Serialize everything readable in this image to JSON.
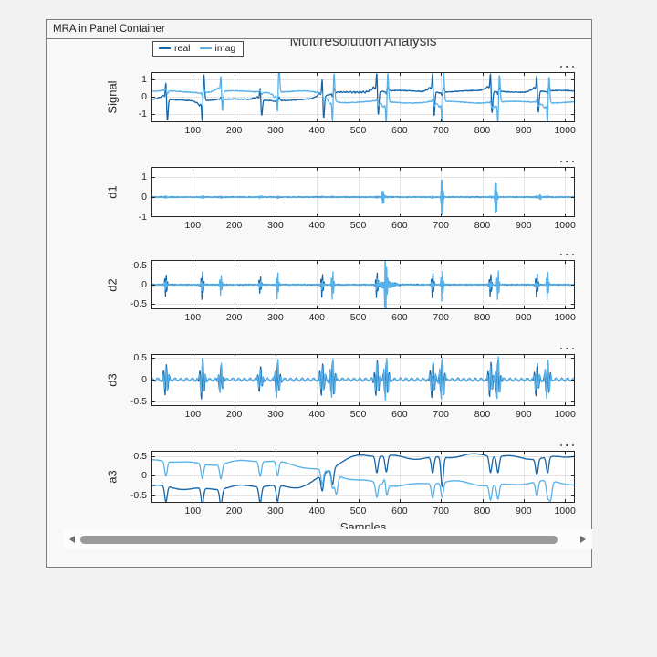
{
  "window": {
    "tab_label": "MRA in Panel Container"
  },
  "figure": {
    "title": "Multiresolution Analysis",
    "xlabel": "Samples",
    "legend": {
      "items": [
        {
          "label": "real",
          "color": "#1565A8"
        },
        {
          "label": "imag",
          "color": "#58B1E8"
        }
      ]
    },
    "axes_menu_icon": "ellipsis-dots"
  },
  "colors": {
    "real_line": "#1565A8",
    "imag_line": "#58B1E8",
    "grid": "#dcdcdc",
    "axis_border": "#262626",
    "panel_border": "#7f7f7f",
    "background": "#f2f2f2",
    "panel_background": "#f8f8f8",
    "scroll_thumb": "#9a9a9a",
    "scroll_arrow": "#6f6f6f"
  },
  "scrollbar": {
    "orientation": "horizontal"
  },
  "chart_data": {
    "type": "line",
    "title": "Multiresolution Analysis",
    "xlabel": "Samples",
    "x_range": [
      0,
      1024
    ],
    "grid": true,
    "legend_position": "top-left",
    "series_names": [
      "real",
      "imag"
    ],
    "xtick_vals": [
      100,
      200,
      300,
      400,
      500,
      600,
      700,
      800,
      900,
      1000
    ],
    "xtick_labels": [
      "100",
      "200",
      "300",
      "400",
      "500",
      "600",
      "700",
      "800",
      "900",
      "1000"
    ],
    "beats": [
      {
        "p": 35,
        "owner": "real",
        "amp": 1.15
      },
      {
        "p": 123,
        "owner": "real",
        "amp": -1.45
      },
      {
        "p": 168,
        "owner": "imag",
        "amp": 1.05
      },
      {
        "p": 263,
        "owner": "real",
        "amp": 0.85
      },
      {
        "p": 305,
        "owner": "imag",
        "amp": -1.35
      },
      {
        "p": 413,
        "owner": "real",
        "amp": 1.2
      },
      {
        "p": 438,
        "owner": "imag",
        "amp": -1.5
      },
      {
        "p": 545,
        "owner": "real",
        "amp": 1.25
      },
      {
        "p": 568,
        "owner": "imag",
        "amp": -1.55
      },
      {
        "p": 680,
        "owner": "real",
        "amp": 1.3
      },
      {
        "p": 703,
        "owner": "imag",
        "amp": -1.6
      },
      {
        "p": 820,
        "owner": "real",
        "amp": 1.2
      },
      {
        "p": 838,
        "owner": "imag",
        "amp": -1.5
      },
      {
        "p": 932,
        "owner": "real",
        "amp": 1.15
      },
      {
        "p": 958,
        "owner": "imag",
        "amp": -1.45
      }
    ],
    "d1_bursts": [
      {
        "p": 125,
        "amp": 0.12
      },
      {
        "p": 265,
        "amp": 0.1
      },
      {
        "p": 560,
        "amp": 0.55
      },
      {
        "p": 703,
        "amp": 1.55
      },
      {
        "p": 833,
        "amp": 1.4
      },
      {
        "p": 940,
        "amp": 0.2
      }
    ],
    "subplots": [
      {
        "kind": "signal",
        "ylabel": "Signal",
        "ytick_labels": [
          "1",
          "0",
          "-1"
        ],
        "ytick_vals": [
          1,
          0,
          -1
        ],
        "ylim": [
          -1.5,
          1.45
        ]
      },
      {
        "kind": "d1",
        "ylabel": "d1",
        "ytick_labels": [
          "1",
          "0",
          "-1"
        ],
        "ytick_vals": [
          1,
          0,
          -1
        ],
        "ylim": [
          -1.0,
          1.5
        ]
      },
      {
        "kind": "d2",
        "ylabel": "d2",
        "ytick_labels": [
          "0.5",
          "0",
          "-0.5"
        ],
        "ytick_vals": [
          0.5,
          0,
          -0.5
        ],
        "ylim": [
          -0.64,
          0.64
        ]
      },
      {
        "kind": "d3",
        "ylabel": "d3",
        "ytick_labels": [
          "0.5",
          "0",
          "-0.5"
        ],
        "ytick_vals": [
          0.5,
          0,
          -0.5
        ],
        "ylim": [
          -0.6,
          0.58
        ]
      },
      {
        "kind": "a3",
        "ylabel": "a3",
        "ytick_labels": [
          "0.5",
          "0",
          "-0.5"
        ],
        "ytick_vals": [
          0.5,
          0,
          -0.5
        ],
        "ylim": [
          -0.7,
          0.65
        ]
      }
    ]
  }
}
